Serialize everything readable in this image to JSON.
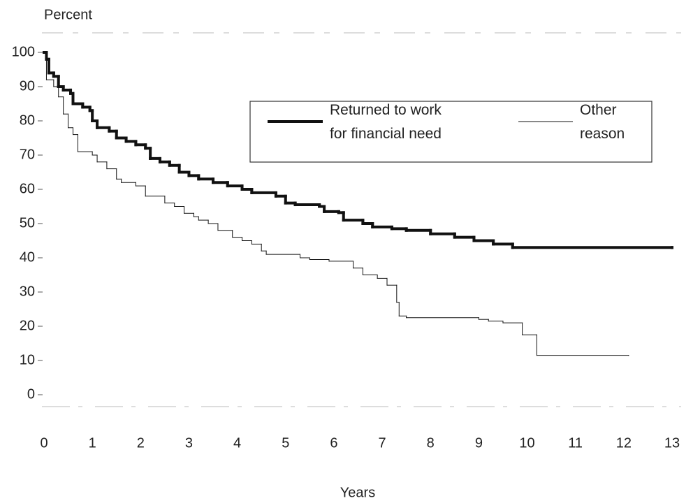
{
  "chart_data": {
    "type": "line",
    "drawstyle": "steps-post",
    "ylabel": "Percent",
    "xlabel": "Years",
    "xlim": [
      0,
      13
    ],
    "xticks": [
      0,
      1,
      2,
      3,
      4,
      5,
      6,
      7,
      8,
      9,
      10,
      11,
      12,
      13
    ],
    "ylim": [
      0,
      100
    ],
    "yticks": [
      0,
      10,
      20,
      30,
      40,
      50,
      60,
      70,
      80,
      90,
      100
    ],
    "legend": "upper right",
    "series": [
      {
        "name": "Returned to work for financial need",
        "color": "#111111",
        "linewidth": 4,
        "x": [
          0,
          0.05,
          0.1,
          0.2,
          0.3,
          0.4,
          0.55,
          0.6,
          0.8,
          0.95,
          1,
          1.1,
          1.35,
          1.5,
          1.7,
          1.9,
          2.1,
          2.2,
          2.4,
          2.6,
          2.8,
          3,
          3.2,
          3.5,
          3.8,
          4.1,
          4.3,
          4.8,
          5,
          5.2,
          5.7,
          5.8,
          6.1,
          6.2,
          6.6,
          6.8,
          7.2,
          7.5,
          8,
          8.5,
          8.9,
          9.3,
          9.7,
          13
        ],
        "values": [
          100,
          98,
          94,
          93,
          90,
          89,
          88,
          85,
          84,
          83,
          80,
          78,
          77,
          75,
          74,
          73,
          72,
          69,
          68,
          67,
          65,
          64,
          63,
          62,
          61,
          60,
          59,
          58,
          56,
          55.5,
          55,
          53.5,
          53.2,
          51,
          50,
          49,
          48.5,
          48,
          47,
          46,
          45,
          44,
          43,
          43
        ]
      },
      {
        "name": "Other reason",
        "color": "#111111",
        "linewidth": 1,
        "x": [
          0,
          0.05,
          0.2,
          0.3,
          0.4,
          0.5,
          0.6,
          0.7,
          1,
          1.1,
          1.3,
          1.5,
          1.6,
          1.9,
          2.1,
          2.5,
          2.7,
          2.9,
          3.1,
          3.2,
          3.4,
          3.6,
          3.9,
          4.1,
          4.3,
          4.5,
          4.6,
          5.3,
          5.5,
          5.9,
          6.4,
          6.6,
          6.9,
          7.1,
          7.3,
          7.35,
          7.5,
          9,
          9.2,
          9.5,
          9.9,
          10.2,
          12.1
        ],
        "values": [
          100,
          92,
          90,
          87,
          82,
          78,
          76,
          71,
          70,
          68,
          66,
          63,
          62,
          61,
          58,
          56,
          55,
          53,
          52,
          51,
          50,
          48,
          46,
          45,
          44,
          42,
          41,
          40,
          39.5,
          39,
          37,
          35,
          34,
          32,
          27,
          23,
          22.5,
          22,
          21.5,
          21,
          17.5,
          11.5,
          11.5
        ]
      }
    ]
  }
}
